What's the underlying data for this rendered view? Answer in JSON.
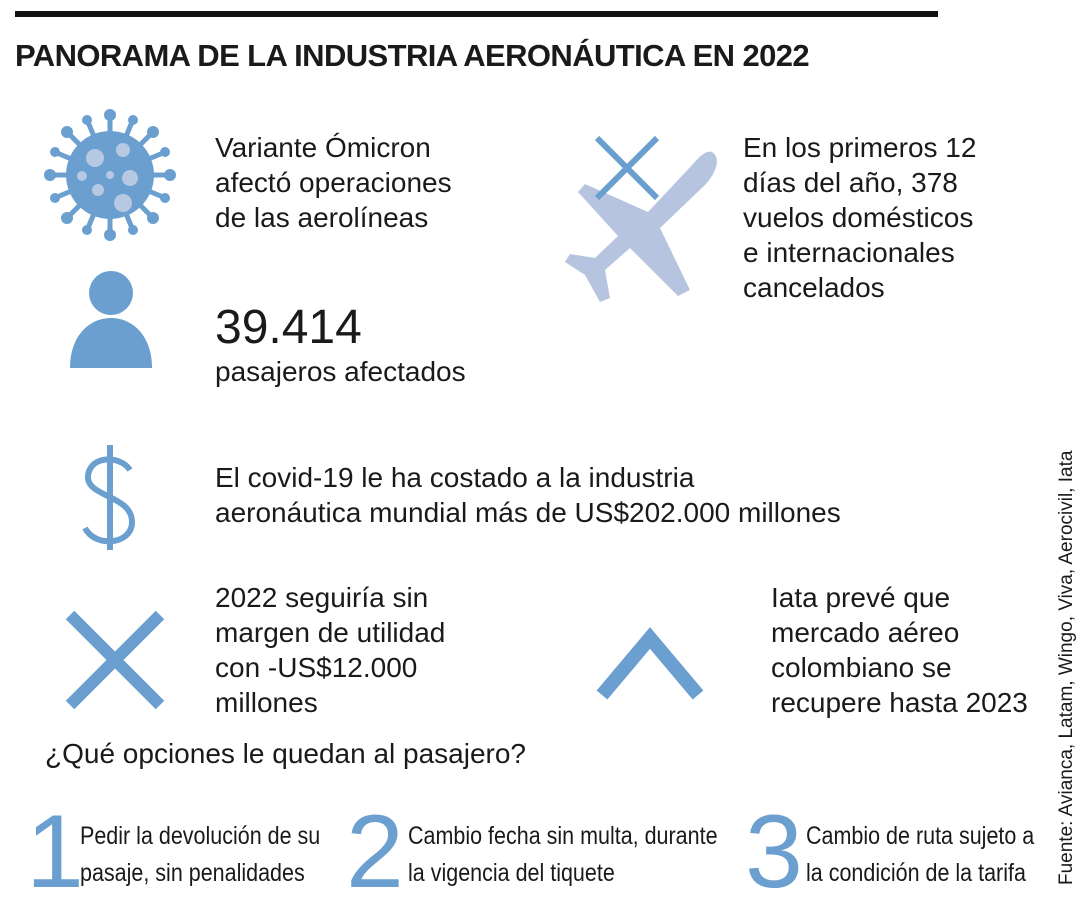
{
  "title": "PANORAMA DE LA INDUSTRIA AERONÁUTICA EN 2022",
  "facts": [
    {
      "lines": [
        "Variante Ómicron",
        "afectó operaciones",
        "de las aerolíneas"
      ]
    },
    {
      "lines": [
        "En los primeros 12",
        "días del año, 378",
        "vuelos domésticos",
        "e internacionales",
        "cancelados"
      ]
    },
    {
      "number": "39.414",
      "lines": [
        "pasajeros afectados"
      ]
    },
    {
      "lines": [
        "El covid-19 le ha costado a la industria",
        "aeronáutica mundial más de US$202.000 millones"
      ]
    },
    {
      "lines": [
        "2022 seguiría sin",
        "margen de utilidad",
        "con -US$12.000",
        "millones"
      ]
    },
    {
      "lines": [
        "Iata prevé que",
        "mercado aéreo",
        "colombiano se",
        "recupere hasta 2023"
      ]
    }
  ],
  "options_title": "¿Qué opciones le quedan al pasajero?",
  "options": [
    {
      "number": "1",
      "lines": [
        "Pedir la devolución de su",
        "pasaje, sin penalidades"
      ]
    },
    {
      "number": "2",
      "lines": [
        "Cambio fecha sin multa, durante",
        "la vigencia del tiquete"
      ]
    },
    {
      "number": "3",
      "lines": [
        "Cambio de ruta sujeto a",
        "la condición de la tarifa"
      ]
    }
  ],
  "source": "Fuente: Avianca, Latam, Wingo, Viva, Aerocivil, Iata"
}
